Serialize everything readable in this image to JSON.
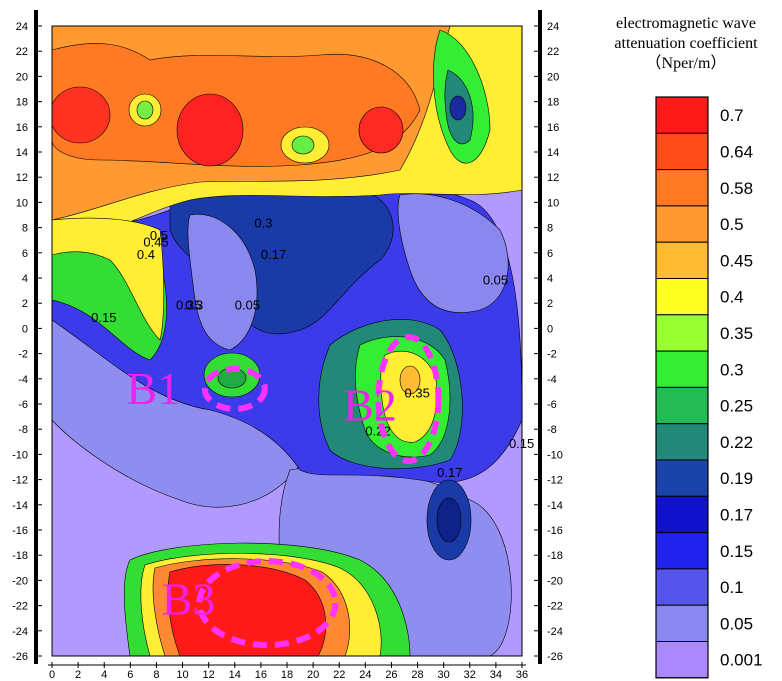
{
  "chart_data": {
    "type": "heatmap",
    "title": "",
    "xlabel": "",
    "ylabel": "",
    "xlim": [
      0,
      36
    ],
    "ylim": [
      -26,
      24
    ],
    "x_ticks": [
      0,
      2,
      4,
      6,
      8,
      10,
      12,
      14,
      16,
      18,
      20,
      22,
      24,
      26,
      28,
      30,
      32,
      34,
      36
    ],
    "y_ticks": [
      24,
      22,
      20,
      18,
      16,
      14,
      12,
      10,
      8,
      6,
      4,
      2,
      0,
      -2,
      -4,
      -6,
      -8,
      -10,
      -12,
      -14,
      -16,
      -18,
      -20,
      -22,
      -24,
      -26
    ],
    "legend": {
      "title_lines": [
        "electromagnetic wave",
        "attenuation coefficient",
        "（Nper/m）"
      ],
      "levels": [
        0.7,
        0.64,
        0.58,
        0.5,
        0.45,
        0.4,
        0.35,
        0.3,
        0.25,
        0.22,
        0.19,
        0.17,
        0.15,
        0.1,
        0.05,
        0.001
      ],
      "colors": [
        "#ff1a1a",
        "#ff4d1a",
        "#ff7a22",
        "#ff9a33",
        "#ffbb33",
        "#ffff22",
        "#99ff33",
        "#33ee33",
        "#22bb55",
        "#228877",
        "#1a44aa",
        "#1111cc",
        "#2222ee",
        "#5555ee",
        "#8888ee",
        "#aa88ff"
      ],
      "placement": "right"
    },
    "contour_labels": [
      {
        "text": "0.5",
        "x": 7.5,
        "y": 7.0
      },
      {
        "text": "0.45",
        "x": 7.0,
        "y": 6.5
      },
      {
        "text": "0.4",
        "x": 6.5,
        "y": 5.5
      },
      {
        "text": "0.3",
        "x": 15.5,
        "y": 8.0
      },
      {
        "text": "0.17",
        "x": 16.0,
        "y": 5.5
      },
      {
        "text": "0.35",
        "x": 9.5,
        "y": 1.5
      },
      {
        "text": "0.3",
        "x": 10.2,
        "y": 1.5
      },
      {
        "text": "0.05",
        "x": 14.0,
        "y": 1.5
      },
      {
        "text": "0.15",
        "x": 3.0,
        "y": 0.5
      },
      {
        "text": "0.05",
        "x": 33.0,
        "y": 3.5
      },
      {
        "text": "0.35",
        "x": 27.0,
        "y": -5.5
      },
      {
        "text": "0.15",
        "x": 35.0,
        "y": -9.5
      },
      {
        "text": "0.17",
        "x": 29.5,
        "y": -11.8
      },
      {
        "text": "0.22",
        "x": 24.0,
        "y": -8.5
      }
    ],
    "regions": [
      {
        "label": "B1",
        "x": 12.5,
        "y": -4.5
      },
      {
        "label": "B2",
        "x": 27.5,
        "y": -5.5
      },
      {
        "label": "B3",
        "x": 16.0,
        "y": -21.5
      }
    ]
  }
}
